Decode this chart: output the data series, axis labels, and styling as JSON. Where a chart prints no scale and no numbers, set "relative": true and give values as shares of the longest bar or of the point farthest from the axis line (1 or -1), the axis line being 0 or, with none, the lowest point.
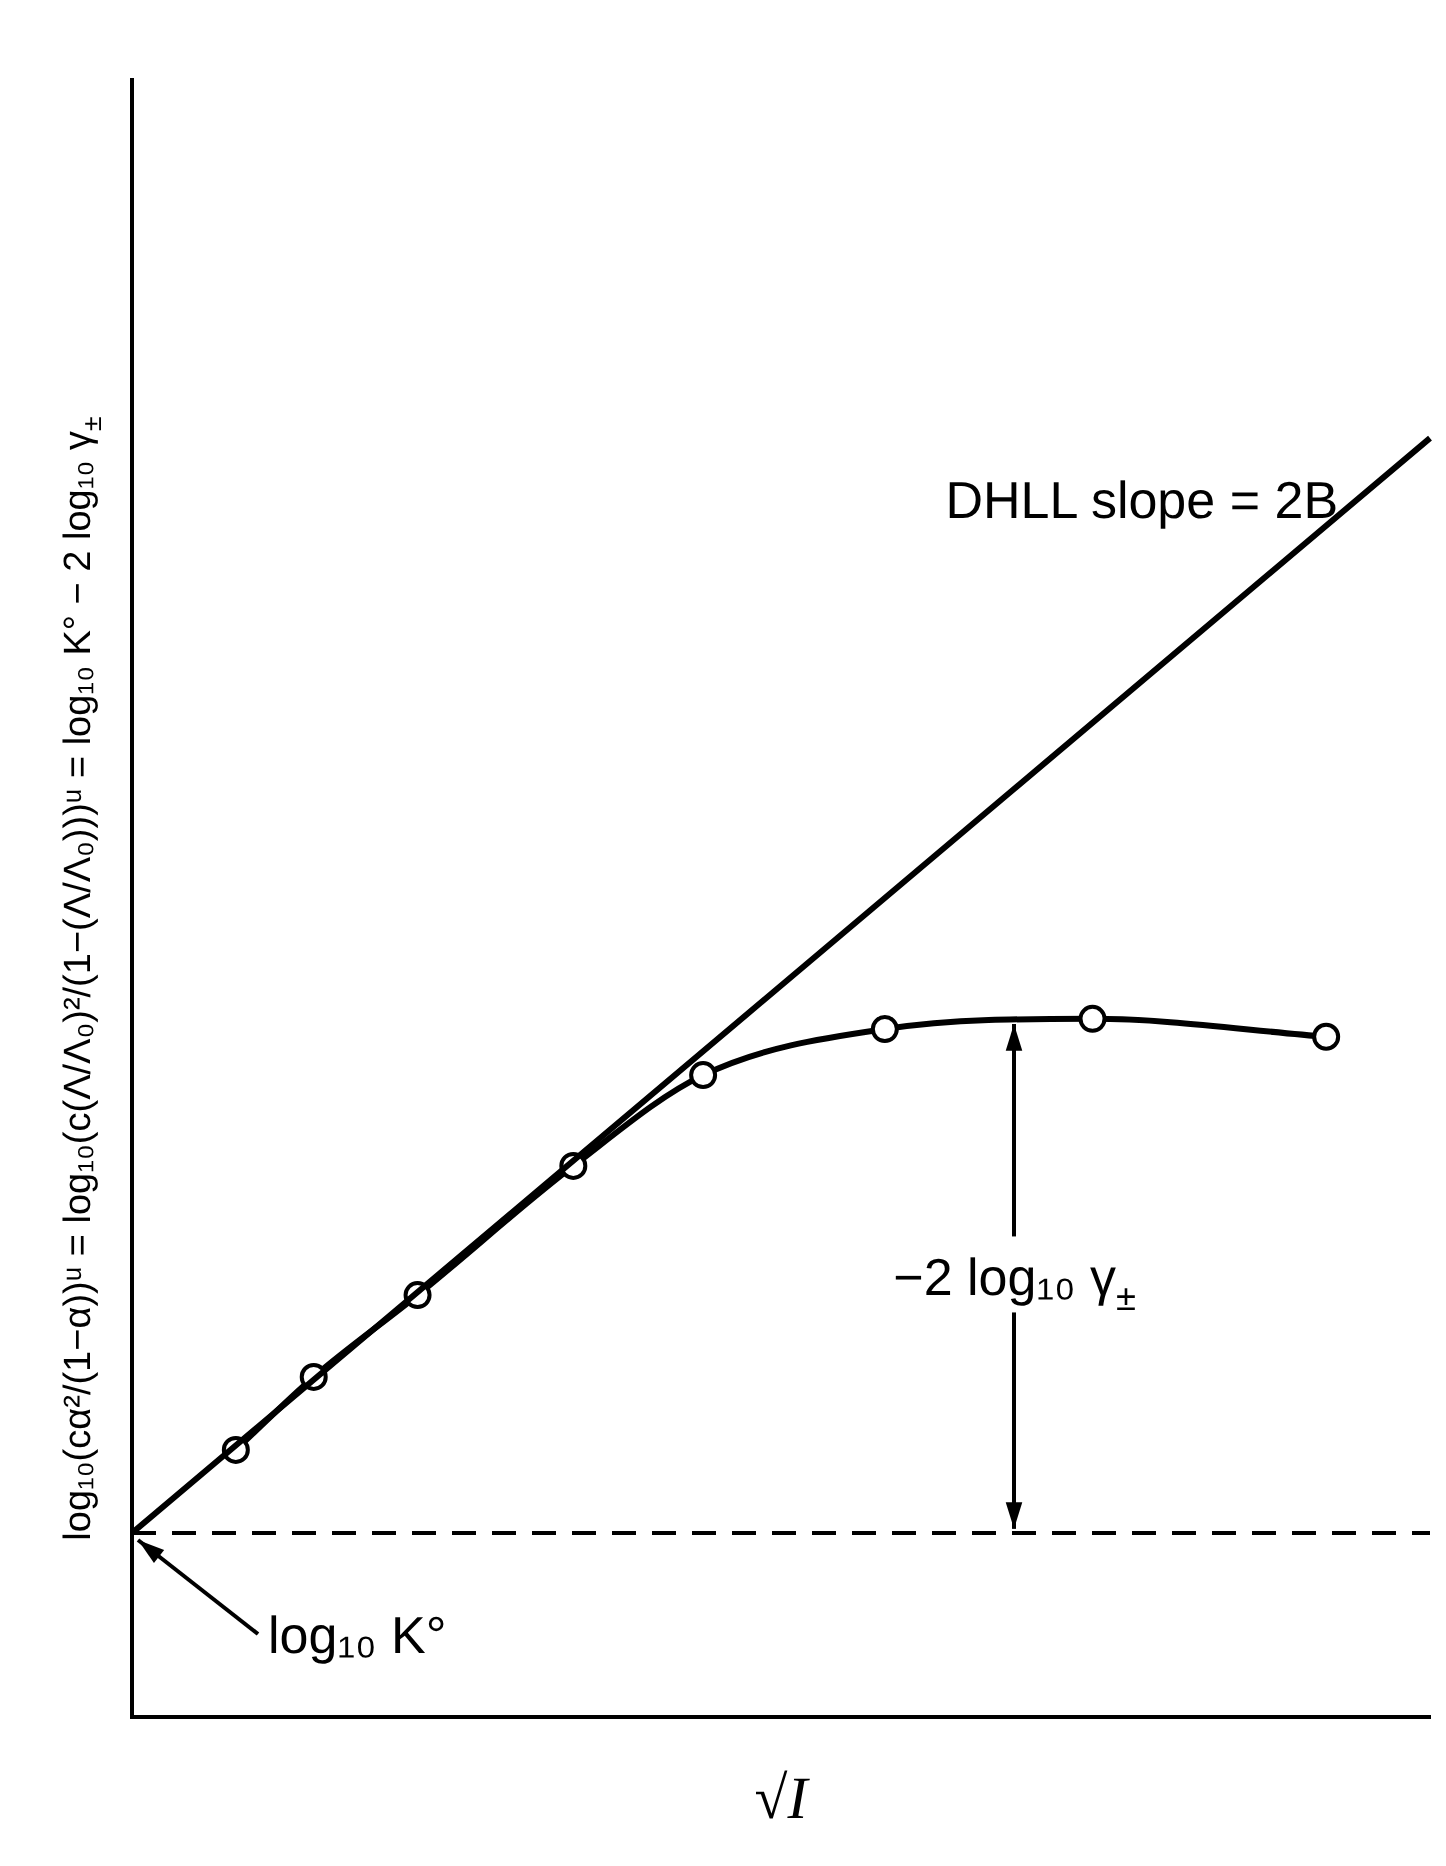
{
  "chart_data": {
    "type": "line",
    "relative": true,
    "xlabel": "√I",
    "ylabel": "log₁₀(cα²/(1−α))ᵘ = log₁₀(c(Λ/Λ₀)²/(1−(Λ/Λ₀)))ᵘ = log₁₀ K° − 2 log₁₀ γ$_{±}$",
    "categories": [
      null,
      null,
      null,
      null,
      null,
      null,
      null,
      null,
      null,
      null,
      null,
      null,
      null,
      null,
      null,
      null,
      null,
      null,
      null,
      null,
      null,
      null,
      null,
      null,
      null,
      null,
      null,
      null,
      null,
      null,
      null,
      null,
      null,
      null,
      null,
      null,
      null,
      null,
      null,
      null,
      null,
      null,
      null,
      null,
      null,
      null,
      null,
      null,
      null,
      null,
      null
    ],
    "grid": false,
    "legend": false,
    "series": [
      {
        "values": [
          0.144,
          null,
          null,
          null,
          null,
          null,
          null,
          null,
          null,
          null,
          null,
          null,
          null,
          null,
          null,
          null,
          null,
          null,
          null,
          null,
          null,
          null,
          null,
          null,
          null,
          null,
          null,
          null,
          null,
          null,
          null,
          null,
          null,
          null,
          null,
          null,
          null,
          null,
          null,
          null,
          null,
          null,
          null,
          null,
          null,
          null,
          null,
          null,
          null,
          null,
          1
        ],
        "color": "#000000",
        "marker": "none"
      },
      {
        "values": [
          null,
          null,
          null,
          null,
          0.209,
          null,
          null,
          0.266,
          null,
          null,
          null,
          0.33,
          null,
          null,
          null,
          null,
          null,
          0.431,
          null,
          null,
          null,
          null,
          0.502,
          null,
          null,
          null,
          null,
          null,
          null,
          0.538,
          null,
          null,
          null,
          null,
          null,
          null,
          null,
          0.546,
          null,
          null,
          null,
          null,
          null,
          null,
          null,
          null,
          0.532,
          null,
          null,
          null,
          null
        ],
        "color": "#000000",
        "marker": "circle"
      }
    ],
    "ref_lines": [
      {
        "axis": "y",
        "value": 0.144,
        "line_style": "dashed"
      }
    ],
    "annotations": [
      "DHLL slope = 2B",
      {
        "text": "−2 log₁₀ γ$_{±}$",
        "y": 0.545
      },
      {
        "text": "log₁₀ K°",
        "y": 0.144
      }
    ]
  }
}
